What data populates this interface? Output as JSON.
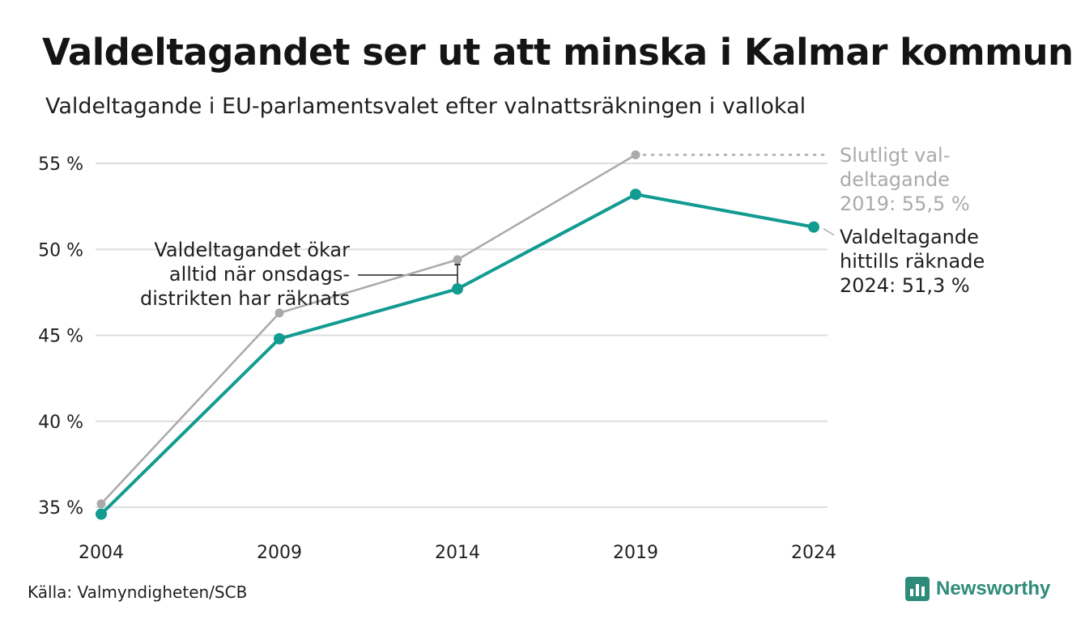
{
  "title": "Valdeltagandet ser ut att minska i Kalmar kommun",
  "subtitle": "Valdeltagande i EU-parlamentsvalet efter valnattsräkningen i vallokal",
  "source": "Källa: Valmyndigheten/SCB",
  "brand": "Newsworthy",
  "colors": {
    "main": "#129b91",
    "final": "#aaaaaa",
    "grid": "#dedede",
    "text": "#1f1f1f"
  },
  "chart_data": {
    "type": "line",
    "categories": [
      "2004",
      "2009",
      "2014",
      "2019",
      "2024"
    ],
    "ylim": [
      34.5,
      56
    ],
    "yticks": [
      35,
      40,
      45,
      50,
      55
    ],
    "ytick_labels": [
      "35 %",
      "40 %",
      "45 %",
      "50 %",
      "55 %"
    ],
    "grid": true,
    "series": [
      {
        "key": "final",
        "values": [
          35.2,
          46.3,
          49.4,
          55.5,
          null
        ],
        "color": "#aaaaaa"
      },
      {
        "key": "counted",
        "values": [
          34.6,
          44.8,
          47.7,
          53.2,
          51.3
        ],
        "color": "#129b91"
      }
    ],
    "annotations": {
      "final_label": [
        "Slutligt val-",
        "deltagande",
        "2019: 55,5 %"
      ],
      "counted_label": [
        "Valdeltagande",
        "hittills räknade",
        "2024: 51,3 %"
      ],
      "district_note": [
        "Valdeltagandet ökar",
        "alltid när onsdags-",
        "distrikten har räknats"
      ]
    }
  }
}
